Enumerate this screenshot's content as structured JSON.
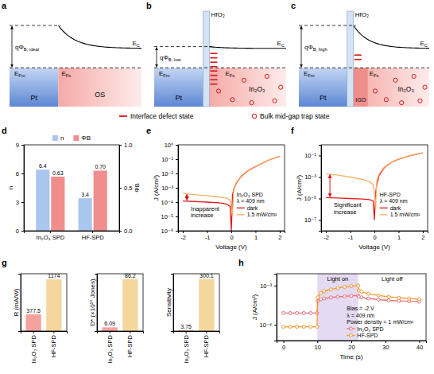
{
  "diagrams": [
    {
      "panel_label": "a",
      "barrier": {
        "text": "qΦ",
        "sub": "B, ideal"
      },
      "conduction_band": {
        "text": "E",
        "sub": "C"
      },
      "metal_fermi": {
        "text": "E",
        "sub": "Fm"
      },
      "semiconductor_fermi": {
        "text": "E",
        "sub": "Fs"
      },
      "metal": "Pt",
      "semiconductor": "OS"
    },
    {
      "panel_label": "b",
      "oxide": "HfO₂",
      "barrier": {
        "text": "qΦ",
        "sub": "B, low"
      },
      "conduction_band": {
        "text": "E",
        "sub": "C"
      },
      "metal_fermi": {
        "text": "E",
        "sub": "Fm"
      },
      "semiconductor_fermi": {
        "text": "E",
        "sub": "Fs"
      },
      "metal": "Pt",
      "semiconductor": "In₂O₃"
    },
    {
      "panel_label": "c",
      "oxide": "HfO₂",
      "barrier": {
        "text": "qΦ",
        "sub": "B, high"
      },
      "conduction_band": {
        "text": "E",
        "sub": "C"
      },
      "metal_fermi": {
        "text": "E",
        "sub": "Fm"
      },
      "semiconductor_fermi": {
        "text": "E",
        "sub": "Fs"
      },
      "metal": "Pt",
      "interlayer": "IGO",
      "semiconductor": "In₂O₃"
    }
  ],
  "diagram_legend": [
    "Interface defect state",
    "Bulk mid-gap trap state"
  ],
  "chart_data": [
    {
      "panel_label": "d",
      "type": "bar",
      "categories": [
        "In₂O₃ SPD",
        "HF-SPD"
      ],
      "y_label": "n",
      "y2_label": "ΦB",
      "series": [
        {
          "name": "n",
          "color": "#a9c6ee",
          "values": [
            6.4,
            3.4
          ]
        },
        {
          "name": "ΦB",
          "color": "#f08e8e",
          "values": [
            0.63,
            0.7
          ],
          "value_labels": [
            "0.63",
            "0.70"
          ],
          "axis": "y2"
        }
      ],
      "ylim": [
        0,
        9
      ],
      "yticks": [
        0,
        3,
        6,
        9
      ],
      "y2lim": [
        0,
        1
      ],
      "y2ticks": [
        {
          "value": 0,
          "label": "0.0"
        },
        0.5,
        {
          "value": 1,
          "label": "1.0"
        }
      ],
      "data_labels": true,
      "legend": "top"
    },
    {
      "panel_label": "e",
      "type": "line",
      "x_label": "Voltage (V)",
      "y_label": "J (A/cm²)",
      "log": "y",
      "xlim": [
        -2.2,
        2.2
      ],
      "xticks": [
        -2,
        -1,
        0,
        1,
        2
      ],
      "ylim": [
        1e-06,
        1
      ],
      "yticks": [
        {
          "value": 1e-06,
          "label": "10⁻⁶"
        },
        {
          "value": 1e-05,
          "label": "10⁻⁵"
        },
        {
          "value": 0.0001,
          "label": "10⁻⁴"
        },
        {
          "value": 0.001,
          "label": "10⁻³"
        },
        {
          "value": 0.01,
          "label": "10⁻²"
        },
        {
          "value": 0.1,
          "label": "10⁻¹"
        },
        {
          "value": 1,
          "label": "10⁰"
        }
      ],
      "annotations": [
        "Inapparent increase",
        "In₂O₃ SPD",
        "λ = 409 nm"
      ],
      "x": [
        -2,
        -1.5,
        -1,
        -0.5,
        -0.2,
        -0.05,
        0,
        0.05,
        0.1,
        0.2,
        0.4,
        0.6,
        0.8,
        1,
        1.5,
        2
      ],
      "series": [
        {
          "name": "dark",
          "color": "#e31a1c",
          "values": [
            0.00012,
            0.00011,
            0.0001,
            9e-05,
            7.5e-05,
            5e-05,
            1e-06,
            0.0003,
            0.0008,
            0.002,
            0.006,
            0.012,
            0.02,
            0.03,
            0.08,
            0.16
          ]
        },
        {
          "name": "1.5 mW/cm²",
          "color": "#f6b26b",
          "values": [
            0.0004,
            0.00033,
            0.00028,
            0.00023,
            0.00019,
            0.00014,
            3e-05,
            1e-05,
            0.0009,
            0.0022,
            0.0065,
            0.013,
            0.021,
            0.031,
            0.082,
            0.16
          ]
        }
      ],
      "legend": "lower right"
    },
    {
      "panel_label": "f",
      "type": "line",
      "x_label": "Voltage (V)",
      "y_label": "J (A/cm²)",
      "log": "y",
      "xlim": [
        -2.2,
        2.2
      ],
      "xticks": [
        -2,
        -1,
        0,
        1,
        2
      ],
      "ylim": [
        1e-08,
        1
      ],
      "yticks": [
        {
          "value": 1e-07,
          "label": "10⁻⁷"
        },
        {
          "value": 1e-05,
          "label": "10⁻⁵"
        },
        {
          "value": 0.001,
          "label": "10⁻³"
        },
        {
          "value": 0.1,
          "label": "10⁻¹"
        }
      ],
      "annotations": [
        "Significant increase",
        "HF-SPD",
        "λ = 409 nm"
      ],
      "x": [
        -2,
        -1.5,
        -1,
        -0.5,
        -0.2,
        -0.05,
        0,
        0.05,
        0.1,
        0.2,
        0.4,
        0.6,
        0.8,
        1,
        1.5,
        2
      ],
      "series": [
        {
          "name": "dark",
          "color": "#e31a1c",
          "values": [
            1.2e-05,
            1.1e-05,
            1e-05,
            9e-06,
            8e-06,
            6e-06,
            1e-07,
            3e-05,
            0.0002,
            0.0015,
            0.007,
            0.016,
            0.03,
            0.045,
            0.1,
            0.18
          ]
        },
        {
          "name": "1.5 mW/cm²",
          "color": "#f6b26b",
          "values": [
            0.002,
            0.0015,
            0.001,
            0.0006,
            0.00035,
            0.0002,
            3e-05,
            1e-06,
            0.0005,
            0.002,
            0.008,
            0.017,
            0.031,
            0.046,
            0.1,
            0.18
          ]
        }
      ],
      "legend": "lower right"
    },
    {
      "panel_label": "g",
      "type": "bar",
      "categories": [
        "In₂O₃ SPD",
        "HF-SPD"
      ],
      "y_label": "R (mA/W)",
      "values": [
        377.5,
        1174
      ],
      "colors": [
        "#f4a29e",
        "#f5d79e"
      ],
      "ylim": [
        0,
        1300
      ],
      "data_labels": true,
      "tick_labels": "x"
    },
    {
      "type": "bar",
      "categories": [
        "In₂O₃ SPD",
        "HF-SPD"
      ],
      "y_label": "D* (×10¹⁰ Jones)",
      "values": [
        6.09,
        86.2
      ],
      "colors": [
        "#f4a29e",
        "#f5d79e"
      ],
      "ylim": [
        0,
        95
      ],
      "data_labels": true,
      "tick_labels": "x"
    },
    {
      "type": "bar",
      "categories": [
        "In₂O₃ SPD",
        "HF-SPD"
      ],
      "y_label": "Sensitivity",
      "values": [
        3.75,
        300.1
      ],
      "colors": [
        "#f4a29e",
        "#f5d79e"
      ],
      "ylim": [
        0,
        330
      ],
      "data_labels": true,
      "tick_labels": "x"
    },
    {
      "panel_label": "h",
      "type": "line",
      "x_label": "Time (s)",
      "y_label": "J (A/cm²)",
      "log": "y",
      "xlim": [
        -2,
        42
      ],
      "xticks": [
        0,
        10,
        20,
        30,
        40
      ],
      "ylim": [
        4e-05,
        0.002
      ],
      "yticks": [
        {
          "value": 0.0001,
          "label": "10⁻⁴"
        },
        {
          "value": 0.001,
          "label": "10⁻³"
        }
      ],
      "light_on": [
        10,
        22
      ],
      "annotations": [
        "Light on",
        "Light off",
        "Bias = -2 V",
        "λ = 409 nm",
        "Power density = 1 mW/cm²"
      ],
      "x": [
        0,
        2,
        4,
        6,
        8,
        9.9,
        10.1,
        11,
        12,
        14,
        16,
        18,
        20,
        22,
        22.2,
        23,
        25,
        28,
        31,
        34,
        37,
        40
      ],
      "series": [
        {
          "name": "In₂O₃ SPD",
          "color": "#ec6f7a",
          "marker": "circle",
          "values": [
            0.0002,
            0.0002,
            0.0002,
            0.0002,
            0.0002,
            0.0002,
            0.0004,
            0.00045,
            0.00047,
            0.0005,
            0.00052,
            0.00053,
            0.00055,
            0.00056,
            0.00052,
            0.0005,
            0.00047,
            0.00044,
            0.00042,
            0.00041,
            0.0004,
            0.00039
          ]
        },
        {
          "name": "HF-SPD",
          "color": "#f4992f",
          "marker": "circle",
          "values": [
            9e-05,
            9e-05,
            9e-05,
            9e-05,
            9e-05,
            9e-05,
            0.0005,
            0.00065,
            0.00072,
            0.0008,
            0.00087,
            0.00092,
            0.00097,
            0.001,
            0.00075,
            0.0007,
            0.00062,
            0.00056,
            0.00052,
            0.00049,
            0.00047,
            0.00045
          ]
        }
      ],
      "legend": "lower right"
    }
  ]
}
